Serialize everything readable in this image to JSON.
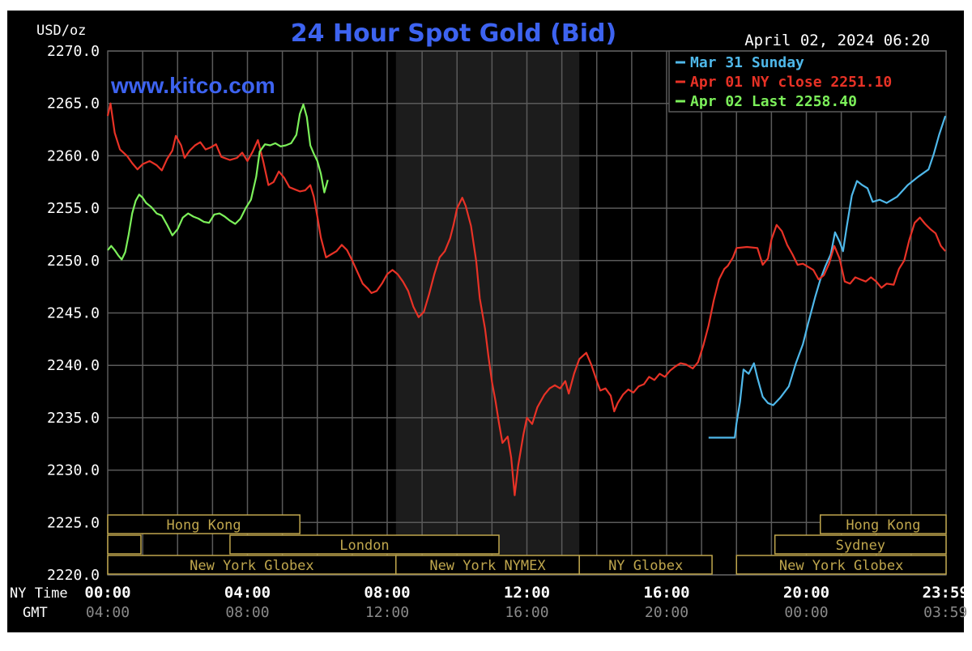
{
  "chart_data": {
    "type": "line",
    "title": "24 Hour Spot Gold (Bid)",
    "brand": "www.kitco.com",
    "timestamp": "April 02, 2024 06:20",
    "ylabel": "USD/oz",
    "ylim": [
      2220,
      2270
    ],
    "y_ticks": [
      "2270.0",
      "2265.0",
      "2260.0",
      "2255.0",
      "2250.0",
      "2245.0",
      "2240.0",
      "2235.0",
      "2230.0",
      "2225.0",
      "2220.0"
    ],
    "xlim": [
      0,
      24
    ],
    "x_tick_hours": [
      0,
      4,
      8,
      12,
      16,
      20,
      23.983
    ],
    "x_ticks_ny": [
      "00:00",
      "04:00",
      "08:00",
      "12:00",
      "16:00",
      "20:00",
      "23:59"
    ],
    "x_ticks_gmt": [
      "04:00",
      "08:00",
      "12:00",
      "16:00",
      "20:00",
      "00:00",
      "03:59"
    ],
    "x_row_labels": {
      "ny": "NY Time",
      "gmt": "GMT"
    },
    "grid": true,
    "legend_position": "top-right",
    "shaded_region": {
      "from": 8.25,
      "to": 13.5
    },
    "series": [
      {
        "name": "Mar 31 Sunday",
        "color": "#4fb8ea",
        "points": [
          [
            17.2,
            2233.1
          ],
          [
            17.95,
            2233.1
          ],
          [
            18.0,
            2234.5
          ],
          [
            18.1,
            2236.5
          ],
          [
            18.2,
            2239.6
          ],
          [
            18.35,
            2239.2
          ],
          [
            18.5,
            2240.2
          ],
          [
            18.6,
            2238.8
          ],
          [
            18.75,
            2237.0
          ],
          [
            18.9,
            2236.4
          ],
          [
            19.05,
            2236.2
          ],
          [
            19.25,
            2236.9
          ],
          [
            19.5,
            2238.0
          ],
          [
            19.7,
            2240.2
          ],
          [
            19.9,
            2242.0
          ],
          [
            20.05,
            2244.0
          ],
          [
            20.25,
            2246.5
          ],
          [
            20.4,
            2248.2
          ],
          [
            20.55,
            2249.5
          ],
          [
            20.7,
            2250.6
          ],
          [
            20.82,
            2252.7
          ],
          [
            20.95,
            2251.8
          ],
          [
            21.05,
            2250.9
          ],
          [
            21.15,
            2253.1
          ],
          [
            21.3,
            2256.2
          ],
          [
            21.45,
            2257.6
          ],
          [
            21.6,
            2257.2
          ],
          [
            21.75,
            2256.9
          ],
          [
            21.9,
            2255.6
          ],
          [
            22.1,
            2255.8
          ],
          [
            22.3,
            2255.5
          ],
          [
            22.6,
            2256.1
          ],
          [
            22.9,
            2257.2
          ],
          [
            23.2,
            2258.0
          ],
          [
            23.5,
            2258.7
          ],
          [
            23.65,
            2260.2
          ],
          [
            23.8,
            2262.0
          ],
          [
            23.98,
            2263.8
          ]
        ]
      },
      {
        "name": "Apr 01 NY close 2251.10",
        "color": "#e83226",
        "points": [
          [
            0.0,
            2263.8
          ],
          [
            0.08,
            2265.0
          ],
          [
            0.2,
            2262.2
          ],
          [
            0.35,
            2260.6
          ],
          [
            0.55,
            2260.0
          ],
          [
            0.7,
            2259.3
          ],
          [
            0.85,
            2258.7
          ],
          [
            1.0,
            2259.2
          ],
          [
            1.2,
            2259.5
          ],
          [
            1.4,
            2259.1
          ],
          [
            1.55,
            2258.6
          ],
          [
            1.7,
            2259.7
          ],
          [
            1.85,
            2260.5
          ],
          [
            1.95,
            2261.9
          ],
          [
            2.1,
            2261.0
          ],
          [
            2.2,
            2259.8
          ],
          [
            2.35,
            2260.5
          ],
          [
            2.5,
            2261.0
          ],
          [
            2.65,
            2261.3
          ],
          [
            2.8,
            2260.6
          ],
          [
            2.95,
            2260.8
          ],
          [
            3.1,
            2261.1
          ],
          [
            3.25,
            2259.9
          ],
          [
            3.5,
            2259.6
          ],
          [
            3.7,
            2259.8
          ],
          [
            3.85,
            2260.3
          ],
          [
            4.0,
            2259.5
          ],
          [
            4.15,
            2260.4
          ],
          [
            4.3,
            2261.5
          ],
          [
            4.45,
            2259.5
          ],
          [
            4.6,
            2257.2
          ],
          [
            4.75,
            2257.5
          ],
          [
            4.9,
            2258.5
          ],
          [
            5.05,
            2257.9
          ],
          [
            5.2,
            2257.0
          ],
          [
            5.35,
            2256.8
          ],
          [
            5.5,
            2256.6
          ],
          [
            5.65,
            2256.7
          ],
          [
            5.8,
            2257.2
          ],
          [
            5.9,
            2256.1
          ],
          [
            6.0,
            2254.2
          ],
          [
            6.1,
            2252.2
          ],
          [
            6.25,
            2250.3
          ],
          [
            6.4,
            2250.6
          ],
          [
            6.55,
            2250.9
          ],
          [
            6.7,
            2251.5
          ],
          [
            6.85,
            2251.0
          ],
          [
            7.0,
            2250.0
          ],
          [
            7.15,
            2248.9
          ],
          [
            7.3,
            2247.8
          ],
          [
            7.45,
            2247.3
          ],
          [
            7.55,
            2246.9
          ],
          [
            7.7,
            2247.1
          ],
          [
            7.85,
            2247.8
          ],
          [
            8.0,
            2248.7
          ],
          [
            8.15,
            2249.1
          ],
          [
            8.3,
            2248.7
          ],
          [
            8.45,
            2248.0
          ],
          [
            8.6,
            2247.1
          ],
          [
            8.75,
            2245.6
          ],
          [
            8.9,
            2244.6
          ],
          [
            9.05,
            2245.1
          ],
          [
            9.2,
            2246.8
          ],
          [
            9.35,
            2248.7
          ],
          [
            9.5,
            2250.3
          ],
          [
            9.65,
            2250.9
          ],
          [
            9.8,
            2252.1
          ],
          [
            9.9,
            2253.4
          ],
          [
            10.0,
            2255.0
          ],
          [
            10.15,
            2256.0
          ],
          [
            10.25,
            2255.2
          ],
          [
            10.4,
            2253.3
          ],
          [
            10.55,
            2249.9
          ],
          [
            10.65,
            2246.4
          ],
          [
            10.8,
            2243.5
          ],
          [
            10.9,
            2240.8
          ],
          [
            11.0,
            2238.4
          ],
          [
            11.1,
            2236.6
          ],
          [
            11.2,
            2234.5
          ],
          [
            11.3,
            2232.6
          ],
          [
            11.45,
            2233.2
          ],
          [
            11.55,
            2231.2
          ],
          [
            11.65,
            2227.6
          ],
          [
            11.75,
            2230.4
          ],
          [
            11.9,
            2233.4
          ],
          [
            12.0,
            2235.0
          ],
          [
            12.15,
            2234.4
          ],
          [
            12.3,
            2236.0
          ],
          [
            12.5,
            2237.2
          ],
          [
            12.65,
            2237.8
          ],
          [
            12.8,
            2238.1
          ],
          [
            12.95,
            2237.8
          ],
          [
            13.1,
            2238.5
          ],
          [
            13.2,
            2237.3
          ],
          [
            13.35,
            2239.2
          ],
          [
            13.5,
            2240.6
          ],
          [
            13.7,
            2241.2
          ],
          [
            13.85,
            2240.0
          ],
          [
            14.0,
            2238.5
          ],
          [
            14.1,
            2237.6
          ],
          [
            14.25,
            2237.8
          ],
          [
            14.4,
            2237.1
          ],
          [
            14.5,
            2235.6
          ],
          [
            14.6,
            2236.4
          ],
          [
            14.75,
            2237.2
          ],
          [
            14.9,
            2237.7
          ],
          [
            15.05,
            2237.4
          ],
          [
            15.2,
            2238.0
          ],
          [
            15.35,
            2238.2
          ],
          [
            15.5,
            2238.9
          ],
          [
            15.65,
            2238.6
          ],
          [
            15.8,
            2239.2
          ],
          [
            15.95,
            2238.9
          ],
          [
            16.1,
            2239.5
          ],
          [
            16.25,
            2239.9
          ],
          [
            16.4,
            2240.2
          ],
          [
            16.55,
            2240.1
          ],
          [
            16.75,
            2239.7
          ],
          [
            16.9,
            2240.3
          ],
          [
            17.05,
            2241.9
          ],
          [
            17.2,
            2243.8
          ],
          [
            17.35,
            2246.2
          ],
          [
            17.5,
            2248.2
          ],
          [
            17.65,
            2249.2
          ],
          [
            17.75,
            2249.5
          ],
          [
            17.9,
            2250.3
          ],
          [
            18.0,
            2251.2
          ],
          [
            18.3,
            2251.3
          ],
          [
            18.6,
            2251.2
          ],
          [
            18.75,
            2249.6
          ],
          [
            18.9,
            2250.2
          ],
          [
            19.0,
            2252.0
          ],
          [
            19.15,
            2253.4
          ],
          [
            19.3,
            2252.8
          ],
          [
            19.45,
            2251.5
          ],
          [
            19.6,
            2250.6
          ],
          [
            19.75,
            2249.6
          ],
          [
            19.9,
            2249.7
          ],
          [
            20.05,
            2249.4
          ],
          [
            20.2,
            2249.1
          ],
          [
            20.35,
            2248.2
          ],
          [
            20.5,
            2248.6
          ],
          [
            20.65,
            2249.7
          ],
          [
            20.8,
            2251.4
          ],
          [
            20.95,
            2250.2
          ],
          [
            21.1,
            2248.0
          ],
          [
            21.25,
            2247.8
          ],
          [
            21.4,
            2248.4
          ],
          [
            21.55,
            2248.2
          ],
          [
            21.7,
            2248.0
          ],
          [
            21.85,
            2248.4
          ],
          [
            22.0,
            2248.0
          ],
          [
            22.15,
            2247.4
          ],
          [
            22.3,
            2247.8
          ],
          [
            22.5,
            2247.7
          ],
          [
            22.65,
            2249.2
          ],
          [
            22.8,
            2250.0
          ],
          [
            22.95,
            2252.0
          ],
          [
            23.1,
            2253.6
          ],
          [
            23.25,
            2254.1
          ],
          [
            23.4,
            2253.5
          ],
          [
            23.55,
            2253.0
          ],
          [
            23.7,
            2252.6
          ],
          [
            23.85,
            2251.4
          ],
          [
            23.98,
            2250.9
          ]
        ]
      },
      {
        "name": "Apr 02 Last 2258.40",
        "color": "#7cf05a",
        "points": [
          [
            0.0,
            2251.0
          ],
          [
            0.1,
            2251.4
          ],
          [
            0.2,
            2251.0
          ],
          [
            0.3,
            2250.5
          ],
          [
            0.4,
            2250.1
          ],
          [
            0.5,
            2250.8
          ],
          [
            0.6,
            2252.5
          ],
          [
            0.7,
            2254.5
          ],
          [
            0.8,
            2255.7
          ],
          [
            0.9,
            2256.3
          ],
          [
            1.0,
            2256.0
          ],
          [
            1.1,
            2255.5
          ],
          [
            1.25,
            2255.1
          ],
          [
            1.4,
            2254.5
          ],
          [
            1.55,
            2254.3
          ],
          [
            1.7,
            2253.4
          ],
          [
            1.85,
            2252.4
          ],
          [
            2.0,
            2253.0
          ],
          [
            2.15,
            2254.1
          ],
          [
            2.3,
            2254.5
          ],
          [
            2.45,
            2254.2
          ],
          [
            2.6,
            2254.0
          ],
          [
            2.75,
            2253.7
          ],
          [
            2.9,
            2253.6
          ],
          [
            3.05,
            2254.4
          ],
          [
            3.2,
            2254.5
          ],
          [
            3.35,
            2254.2
          ],
          [
            3.5,
            2253.8
          ],
          [
            3.65,
            2253.5
          ],
          [
            3.8,
            2254.0
          ],
          [
            3.95,
            2255.0
          ],
          [
            4.1,
            2255.8
          ],
          [
            4.25,
            2258.0
          ],
          [
            4.35,
            2260.4
          ],
          [
            4.5,
            2261.1
          ],
          [
            4.65,
            2261.0
          ],
          [
            4.8,
            2261.2
          ],
          [
            4.95,
            2260.9
          ],
          [
            5.1,
            2261.0
          ],
          [
            5.25,
            2261.2
          ],
          [
            5.4,
            2262.0
          ],
          [
            5.5,
            2264.0
          ],
          [
            5.6,
            2264.9
          ],
          [
            5.7,
            2263.7
          ],
          [
            5.8,
            2261.0
          ],
          [
            5.9,
            2260.2
          ],
          [
            6.0,
            2259.5
          ],
          [
            6.1,
            2258.3
          ],
          [
            6.2,
            2256.5
          ],
          [
            6.3,
            2257.7
          ]
        ]
      }
    ],
    "session_bands": [
      {
        "label": "Hong Kong",
        "row": 0,
        "from": 0,
        "to": 5.5
      },
      {
        "label": "",
        "row": 1,
        "from": 0,
        "to": 0.95
      },
      {
        "label": "London",
        "row": 1,
        "from": 3.5,
        "to": 11.2
      },
      {
        "label": "New York Globex",
        "row": 2,
        "from": 0,
        "to": 8.25
      },
      {
        "label": "New York NYMEX",
        "row": 2,
        "from": 8.25,
        "to": 13.5
      },
      {
        "label": "NY Globex",
        "row": 2,
        "from": 13.5,
        "to": 17.3
      },
      {
        "label": "Hong Kong",
        "row": 0,
        "from": 20.4,
        "to": 24
      },
      {
        "label": "Sydney",
        "row": 1,
        "from": 19.1,
        "to": 24
      },
      {
        "label": "New York Globex",
        "row": 2,
        "from": 18.0,
        "to": 24
      }
    ],
    "colors": {
      "background": "#000000",
      "grid": "#5a5a5a",
      "title": "#3d63f0",
      "brand": "#3d63f0",
      "axis_text": "#ffffff",
      "gmt_text": "#8a8a8a",
      "band": "#bfa64d",
      "shade": "#1c1c1c"
    }
  }
}
